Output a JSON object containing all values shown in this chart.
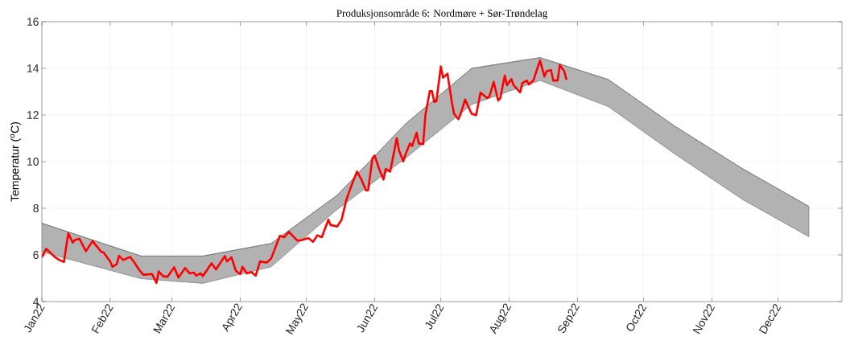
{
  "chart_data": {
    "type": "line",
    "title": "Produksjonsområde 6: Nordmøre + Sør-Trøndelag",
    "ylabel": "Temperatur ($^{o}$C)",
    "xlim": [
      "2022-01-01",
      "2022-12-30"
    ],
    "ylim": [
      4,
      16
    ],
    "yticks": [
      4,
      6,
      8,
      10,
      12,
      14,
      16
    ],
    "xticks": [
      {
        "value": "2022-01-01",
        "label": "Jan22"
      },
      {
        "value": "2022-02-01",
        "label": "Feb22"
      },
      {
        "value": "2022-03-01",
        "label": "Mar22"
      },
      {
        "value": "2022-04-01",
        "label": "Apr22"
      },
      {
        "value": "2022-05-01",
        "label": "May22"
      },
      {
        "value": "2022-06-01",
        "label": "Jun22"
      },
      {
        "value": "2022-07-01",
        "label": "Jul22"
      },
      {
        "value": "2022-08-01",
        "label": "Aug22"
      },
      {
        "value": "2022-09-01",
        "label": "Sep22"
      },
      {
        "value": "2022-10-01",
        "label": "Oct22"
      },
      {
        "value": "2022-11-01",
        "label": "Nov22"
      },
      {
        "value": "2022-12-01",
        "label": "Dec22"
      }
    ],
    "grid": true,
    "series": [
      {
        "color": "#666666",
        "upper": [
          7.36,
          5.95,
          5.95,
          6.49,
          8.56,
          11.62,
          14.0,
          14.46,
          13.52,
          11.53,
          9.69,
          8.08
        ],
        "x": [
          "2022-01-01",
          "2022-02-15",
          "2022-03-15",
          "2022-04-15",
          "2022-05-15",
          "2022-06-15",
          "2022-07-15",
          "2022-08-15",
          "2022-09-15",
          "2022-10-15",
          "2022-11-15",
          "2022-12-15"
        ],
        "lower": [
          6.13,
          4.98,
          4.78,
          5.49,
          7.95,
          10.15,
          12.45,
          13.48,
          12.36,
          10.34,
          8.37,
          6.78
        ],
        "values": [
          7.36,
          5.95,
          5.95,
          6.49,
          8.56,
          11.62,
          14.0,
          14.46,
          13.52,
          11.53,
          9.69,
          8.08
        ]
      },
      {
        "color": "#ff0000",
        "x": [
          "2022-01-01",
          "2022-01-03",
          "2022-01-07",
          "2022-01-09",
          "2022-01-11",
          "2022-01-13",
          "2022-01-15",
          "2022-01-16",
          "2022-01-18",
          "2022-01-21",
          "2022-01-24",
          "2022-01-26",
          "2022-01-28",
          "2022-01-29",
          "2022-02-01",
          "2022-02-02",
          "2022-02-04",
          "2022-02-05",
          "2022-02-07",
          "2022-02-10",
          "2022-02-12",
          "2022-02-14",
          "2022-02-16",
          "2022-02-20",
          "2022-02-22",
          "2022-02-23",
          "2022-02-25",
          "2022-02-27",
          "2022-03-02",
          "2022-03-04",
          "2022-03-07",
          "2022-03-09",
          "2022-03-11",
          "2022-03-12",
          "2022-03-14",
          "2022-03-15",
          "2022-03-19",
          "2022-03-21",
          "2022-03-25",
          "2022-03-26",
          "2022-03-28",
          "2022-03-30",
          "2022-04-01",
          "2022-04-02",
          "2022-04-04",
          "2022-04-06",
          "2022-04-08",
          "2022-04-10",
          "2022-04-13",
          "2022-04-15",
          "2022-04-19",
          "2022-04-21",
          "2022-04-23",
          "2022-04-27",
          "2022-04-29",
          "2022-05-02",
          "2022-05-04",
          "2022-05-06",
          "2022-05-08",
          "2022-05-11",
          "2022-05-12",
          "2022-05-15",
          "2022-05-17",
          "2022-05-19",
          "2022-05-20",
          "2022-05-22",
          "2022-05-24",
          "2022-05-26",
          "2022-05-28",
          "2022-05-29",
          "2022-05-31",
          "2022-06-01",
          "2022-06-03",
          "2022-06-05",
          "2022-06-06",
          "2022-06-08",
          "2022-06-09",
          "2022-06-11",
          "2022-06-12",
          "2022-06-14",
          "2022-06-15",
          "2022-06-17",
          "2022-06-18",
          "2022-06-20",
          "2022-06-21",
          "2022-06-23",
          "2022-06-24",
          "2022-06-26",
          "2022-06-27",
          "2022-06-28",
          "2022-06-29",
          "2022-07-01",
          "2022-07-02",
          "2022-07-04",
          "2022-07-06",
          "2022-07-07",
          "2022-07-09",
          "2022-07-10",
          "2022-07-12",
          "2022-07-15",
          "2022-07-17",
          "2022-07-19",
          "2022-07-22",
          "2022-07-23",
          "2022-07-25",
          "2022-07-27",
          "2022-07-28",
          "2022-07-30",
          "2022-07-31",
          "2022-08-02",
          "2022-08-03",
          "2022-08-06",
          "2022-08-07",
          "2022-08-09",
          "2022-08-10",
          "2022-08-12",
          "2022-08-14",
          "2022-08-15",
          "2022-08-17",
          "2022-08-18",
          "2022-08-20",
          "2022-08-21",
          "2022-08-23",
          "2022-08-24",
          "2022-08-26",
          "2022-08-27"
        ],
        "values": [
          5.9,
          6.26,
          5.9,
          5.78,
          5.7,
          6.93,
          6.53,
          6.64,
          6.7,
          6.16,
          6.59,
          6.36,
          6.13,
          6.1,
          5.72,
          5.49,
          5.61,
          5.96,
          5.78,
          5.92,
          5.67,
          5.38,
          5.15,
          5.18,
          4.8,
          5.29,
          5.09,
          5.06,
          5.47,
          5.03,
          5.44,
          5.21,
          5.24,
          5.11,
          5.21,
          5.09,
          5.64,
          5.38,
          5.95,
          5.72,
          5.9,
          5.32,
          5.18,
          5.49,
          5.21,
          5.27,
          5.11,
          5.72,
          5.67,
          5.84,
          6.82,
          6.76,
          6.99,
          6.61,
          6.64,
          6.72,
          6.56,
          6.84,
          6.76,
          7.51,
          7.28,
          7.22,
          7.51,
          8.31,
          8.6,
          9.11,
          9.57,
          9.23,
          8.77,
          8.77,
          10.15,
          10.26,
          9.69,
          9.23,
          9.69,
          9.57,
          10.03,
          11.01,
          10.49,
          10.01,
          10.32,
          10.78,
          10.67,
          11.24,
          10.78,
          10.75,
          11.99,
          13.02,
          13.02,
          12.56,
          12.59,
          14.08,
          13.6,
          13.77,
          12.56,
          12.05,
          11.82,
          12.05,
          12.66,
          12.05,
          11.99,
          12.96,
          12.73,
          12.79,
          13.42,
          12.62,
          12.73,
          13.69,
          13.28,
          13.54,
          13.28,
          12.97,
          13.37,
          13.48,
          13.31,
          13.48,
          14.06,
          14.34,
          13.65,
          13.88,
          13.92,
          13.48,
          13.48,
          14.15,
          13.88,
          13.51
        ]
      }
    ]
  }
}
